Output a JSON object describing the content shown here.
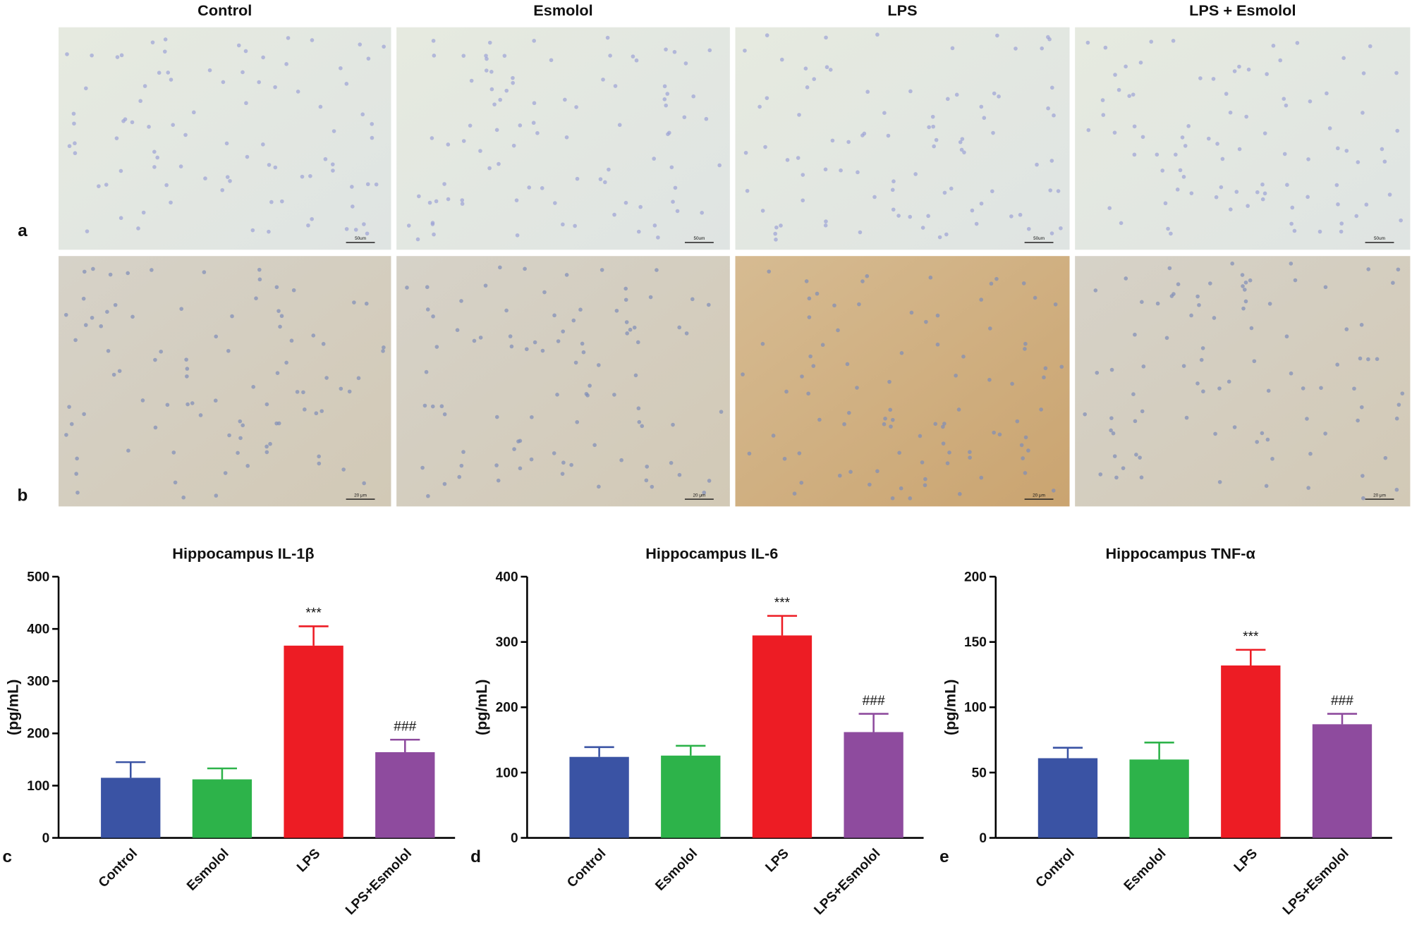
{
  "micrographs": {
    "column_titles": [
      "Control",
      "Esmolol",
      "LPS",
      "LPS + Esmolol"
    ],
    "row_labels": [
      "a",
      "b"
    ],
    "scale_bar_labels": [
      "50um",
      "20 μm"
    ]
  },
  "chart_data": [
    {
      "type": "bar",
      "panel_label": "c",
      "title": "Hippocampus IL-1β",
      "y_label": "(pg/mL)",
      "categories": [
        "Control",
        "Esmolol",
        "LPS",
        "LPS+Esmolol"
      ],
      "values": [
        115,
        112,
        368,
        164
      ],
      "errors": [
        30,
        21,
        37,
        24
      ],
      "colors": [
        "#3a53a4",
        "#2db34a",
        "#ed1c24",
        "#8e4b9e"
      ],
      "value_annotations": [
        null,
        null,
        "***",
        "###"
      ],
      "ylim": [
        0,
        500
      ],
      "yticks": [
        0,
        100,
        200,
        300,
        400,
        500
      ]
    },
    {
      "type": "bar",
      "panel_label": "d",
      "title": "Hippocampus IL-6",
      "y_label": "(pg/mL)",
      "categories": [
        "Control",
        "Esmolol",
        "LPS",
        "LPS+Esmolol"
      ],
      "values": [
        124,
        126,
        310,
        162
      ],
      "errors": [
        15,
        15,
        30,
        28
      ],
      "colors": [
        "#3a53a4",
        "#2db34a",
        "#ed1c24",
        "#8e4b9e"
      ],
      "value_annotations": [
        null,
        null,
        "***",
        "###"
      ],
      "ylim": [
        0,
        400
      ],
      "yticks": [
        0,
        100,
        200,
        300,
        400
      ]
    },
    {
      "type": "bar",
      "panel_label": "e",
      "title": "Hippocampus TNF-α",
      "y_label": "(pg/mL)",
      "categories": [
        "Control",
        "Esmolol",
        "LPS",
        "LPS+Esmolol"
      ],
      "values": [
        61,
        60,
        132,
        87
      ],
      "errors": [
        8,
        13,
        12,
        8
      ],
      "colors": [
        "#3a53a4",
        "#2db34a",
        "#ed1c24",
        "#8e4b9e"
      ],
      "value_annotations": [
        null,
        null,
        "***",
        "###"
      ],
      "ylim": [
        0,
        200
      ],
      "yticks": [
        0,
        50,
        100,
        150,
        200
      ]
    }
  ]
}
